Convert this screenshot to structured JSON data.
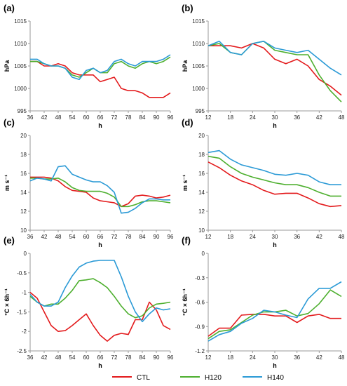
{
  "colors": {
    "CTL": "#e31a1c",
    "H120": "#4daf2e",
    "H140": "#2b9ad6"
  },
  "legend": [
    {
      "key": "CTL",
      "label": "CTL"
    },
    {
      "key": "H120",
      "label": "H120"
    },
    {
      "key": "H140",
      "label": "H140"
    }
  ],
  "chart_data": [
    {
      "id": "a",
      "panel_label": "(a)",
      "type": "line",
      "xlabel": "h",
      "ylabel": "hPa",
      "xlim": [
        36,
        96
      ],
      "ylim": [
        995,
        1015
      ],
      "xticks": [
        36,
        42,
        48,
        54,
        60,
        66,
        72,
        78,
        84,
        90,
        96
      ],
      "yticks": [
        995,
        1000,
        1005,
        1010,
        1015
      ],
      "ytick_labels": [
        "995",
        "1000",
        "1005",
        "1010",
        "1015"
      ],
      "x": [
        36,
        39,
        42,
        45,
        48,
        51,
        54,
        57,
        60,
        63,
        66,
        69,
        72,
        75,
        78,
        81,
        84,
        87,
        90,
        93,
        96
      ],
      "series": [
        {
          "name": "CTL",
          "values": [
            1006,
            1006,
            1005,
            1005,
            1005.5,
            1005,
            1003.5,
            1003,
            1003,
            1003,
            1001.5,
            1002,
            1002.5,
            1000,
            999.5,
            999.5,
            999,
            998,
            998,
            998,
            999
          ]
        },
        {
          "name": "H120",
          "values": [
            1006,
            1006,
            1005.5,
            1005,
            1005,
            1004.5,
            1003,
            1002.5,
            1003.5,
            1004.5,
            1003.5,
            1003.5,
            1005.5,
            1006,
            1005,
            1004.5,
            1005.5,
            1006,
            1005.5,
            1006,
            1007
          ]
        },
        {
          "name": "H140",
          "values": [
            1006.5,
            1006.5,
            1005.5,
            1005,
            1005,
            1004.5,
            1002.5,
            1002,
            1004,
            1004.5,
            1003.5,
            1004,
            1006,
            1006.5,
            1005.5,
            1005,
            1006,
            1006,
            1006,
            1006.5,
            1007.5
          ]
        }
      ]
    },
    {
      "id": "b",
      "panel_label": "(b)",
      "type": "line",
      "xlabel": "h",
      "ylabel": "hPa",
      "xlim": [
        12,
        48
      ],
      "ylim": [
        995,
        1015
      ],
      "xticks": [
        12,
        18,
        24,
        30,
        36,
        42,
        48
      ],
      "yticks": [
        995,
        1000,
        1005,
        1010,
        1015
      ],
      "ytick_labels": [
        "995",
        "1000",
        "1005",
        "1010",
        "1015"
      ],
      "x": [
        12,
        15,
        18,
        21,
        24,
        27,
        30,
        33,
        36,
        39,
        42,
        45,
        48
      ],
      "series": [
        {
          "name": "CTL",
          "values": [
            1009.5,
            1009.5,
            1009.5,
            1009,
            1010,
            1009,
            1006.5,
            1005.5,
            1006.5,
            1005,
            1002,
            1000.5,
            998.5
          ]
        },
        {
          "name": "H120",
          "values": [
            1009.5,
            1010,
            1008,
            1007.5,
            1010,
            1010.5,
            1008.5,
            1008,
            1007.5,
            1007.5,
            1003,
            999.5,
            997
          ]
        },
        {
          "name": "H140",
          "values": [
            1009.5,
            1010.5,
            1008,
            1007.5,
            1010,
            1010.5,
            1009,
            1008.5,
            1008,
            1008.5,
            1006.5,
            1004.5,
            1003
          ]
        }
      ]
    },
    {
      "id": "c",
      "panel_label": "(c)",
      "type": "line",
      "xlabel": "h",
      "ylabel": "m s⁻¹",
      "xlim": [
        36,
        96
      ],
      "ylim": [
        10,
        20
      ],
      "xticks": [
        36,
        42,
        48,
        54,
        60,
        66,
        72,
        78,
        84,
        90,
        96
      ],
      "yticks": [
        10,
        12,
        14,
        16,
        18,
        20
      ],
      "ytick_labels": [
        "10",
        "12",
        "14",
        "16",
        "18",
        "20"
      ],
      "x": [
        36,
        39,
        42,
        45,
        48,
        51,
        54,
        57,
        60,
        63,
        66,
        69,
        72,
        75,
        78,
        81,
        84,
        87,
        90,
        93,
        96
      ],
      "series": [
        {
          "name": "CTL",
          "values": [
            15.6,
            15.6,
            15.6,
            15.5,
            15.2,
            14.6,
            14.2,
            14.1,
            14.0,
            13.4,
            13.1,
            13.0,
            12.9,
            12.5,
            12.8,
            13.6,
            13.7,
            13.6,
            13.4,
            13.5,
            13.7
          ]
        },
        {
          "name": "H120",
          "values": [
            15.5,
            15.5,
            15.4,
            15.4,
            15.5,
            15.1,
            14.5,
            14.2,
            14.1,
            14.1,
            14.1,
            13.9,
            13.5,
            12.5,
            12.5,
            12.7,
            13.0,
            13.1,
            13.1,
            13.0,
            12.9
          ]
        },
        {
          "name": "H140",
          "values": [
            15.2,
            15.5,
            15.4,
            15.2,
            16.7,
            16.8,
            15.9,
            15.6,
            15.3,
            15.1,
            15.1,
            14.7,
            14.0,
            11.8,
            11.9,
            12.3,
            12.9,
            13.3,
            13.3,
            13.2,
            13.2
          ]
        }
      ]
    },
    {
      "id": "d",
      "panel_label": "(d)",
      "type": "line",
      "xlabel": "h",
      "ylabel": "m s⁻¹",
      "xlim": [
        12,
        48
      ],
      "ylim": [
        10,
        20
      ],
      "xticks": [
        12,
        18,
        24,
        30,
        36,
        42,
        48
      ],
      "yticks": [
        10,
        12,
        14,
        16,
        18,
        20
      ],
      "ytick_labels": [
        "10",
        "12",
        "14",
        "16",
        "18",
        "20"
      ],
      "x": [
        12,
        15,
        18,
        21,
        24,
        27,
        30,
        33,
        36,
        39,
        42,
        45,
        48
      ],
      "series": [
        {
          "name": "CTL",
          "values": [
            17.2,
            16.6,
            15.8,
            15.2,
            14.8,
            14.2,
            13.8,
            13.9,
            13.9,
            13.4,
            12.8,
            12.5,
            12.6
          ]
        },
        {
          "name": "H120",
          "values": [
            17.8,
            17.6,
            16.7,
            16.0,
            15.6,
            15.3,
            15.0,
            14.8,
            14.8,
            14.5,
            14.0,
            13.6,
            13.6
          ]
        },
        {
          "name": "H140",
          "values": [
            18.2,
            18.4,
            17.5,
            16.9,
            16.6,
            16.3,
            15.9,
            15.8,
            16.0,
            15.8,
            15.1,
            14.8,
            14.8
          ]
        }
      ]
    },
    {
      "id": "e",
      "panel_label": "(e)",
      "type": "line",
      "xlabel": "h",
      "ylabel": "°C × 6h⁻¹",
      "xlim": [
        36,
        96
      ],
      "ylim": [
        -2.5,
        0
      ],
      "xticks": [
        36,
        42,
        48,
        54,
        60,
        66,
        72,
        78,
        84,
        90,
        96
      ],
      "yticks": [
        -2.5,
        -2,
        -1.5,
        -1,
        -0.5,
        0
      ],
      "ytick_labels": [
        "-2.5",
        "-2",
        "-1.5",
        "-1",
        "-0.5",
        "0"
      ],
      "x": [
        36,
        39,
        42,
        45,
        48,
        51,
        54,
        57,
        60,
        63,
        66,
        69,
        72,
        75,
        78,
        81,
        84,
        87,
        90,
        93,
        96
      ],
      "series": [
        {
          "name": "CTL",
          "values": [
            -1.0,
            -1.15,
            -1.5,
            -1.85,
            -2.0,
            -1.98,
            -1.85,
            -1.7,
            -1.55,
            -1.85,
            -2.1,
            -2.25,
            -2.1,
            -2.05,
            -2.08,
            -1.7,
            -1.7,
            -1.25,
            -1.45,
            -1.85,
            -1.95
          ]
        },
        {
          "name": "H120",
          "values": [
            -1.1,
            -1.25,
            -1.35,
            -1.3,
            -1.3,
            -1.15,
            -0.95,
            -0.7,
            -0.68,
            -0.65,
            -0.75,
            -0.88,
            -1.1,
            -1.35,
            -1.55,
            -1.65,
            -1.6,
            -1.4,
            -1.3,
            -1.28,
            -1.25
          ]
        },
        {
          "name": "H140",
          "values": [
            -1.05,
            -1.25,
            -1.35,
            -1.35,
            -1.25,
            -0.88,
            -0.58,
            -0.35,
            -0.25,
            -0.2,
            -0.18,
            -0.18,
            -0.18,
            -0.6,
            -1.1,
            -1.5,
            -1.75,
            -1.55,
            -1.4,
            -1.45,
            -1.42
          ]
        }
      ]
    },
    {
      "id": "f",
      "panel_label": "(f)",
      "type": "line",
      "xlabel": "h",
      "ylabel": "°C × 6h⁻¹",
      "xlim": [
        12,
        48
      ],
      "ylim": [
        -1.2,
        0
      ],
      "xticks": [
        12,
        18,
        24,
        30,
        36,
        42,
        48
      ],
      "yticks": [
        -1.2,
        -0.9,
        -0.6,
        -0.3,
        0
      ],
      "ytick_labels": [
        "-1.2",
        "-0.9",
        "-0.6",
        "-0.3",
        "0"
      ],
      "x": [
        12,
        15,
        18,
        21,
        24,
        27,
        30,
        33,
        36,
        39,
        42,
        45,
        48
      ],
      "series": [
        {
          "name": "CTL",
          "values": [
            -1.02,
            -0.92,
            -0.92,
            -0.76,
            -0.75,
            -0.75,
            -0.77,
            -0.77,
            -0.85,
            -0.77,
            -0.75,
            -0.8,
            -0.8
          ]
        },
        {
          "name": "H120",
          "values": [
            -1.05,
            -0.96,
            -0.94,
            -0.85,
            -0.76,
            -0.72,
            -0.72,
            -0.7,
            -0.77,
            -0.74,
            -0.62,
            -0.45,
            -0.53
          ]
        },
        {
          "name": "H140",
          "values": [
            -1.08,
            -1.0,
            -0.96,
            -0.86,
            -0.8,
            -0.7,
            -0.72,
            -0.76,
            -0.79,
            -0.56,
            -0.43,
            -0.43,
            -0.35
          ]
        }
      ]
    }
  ]
}
